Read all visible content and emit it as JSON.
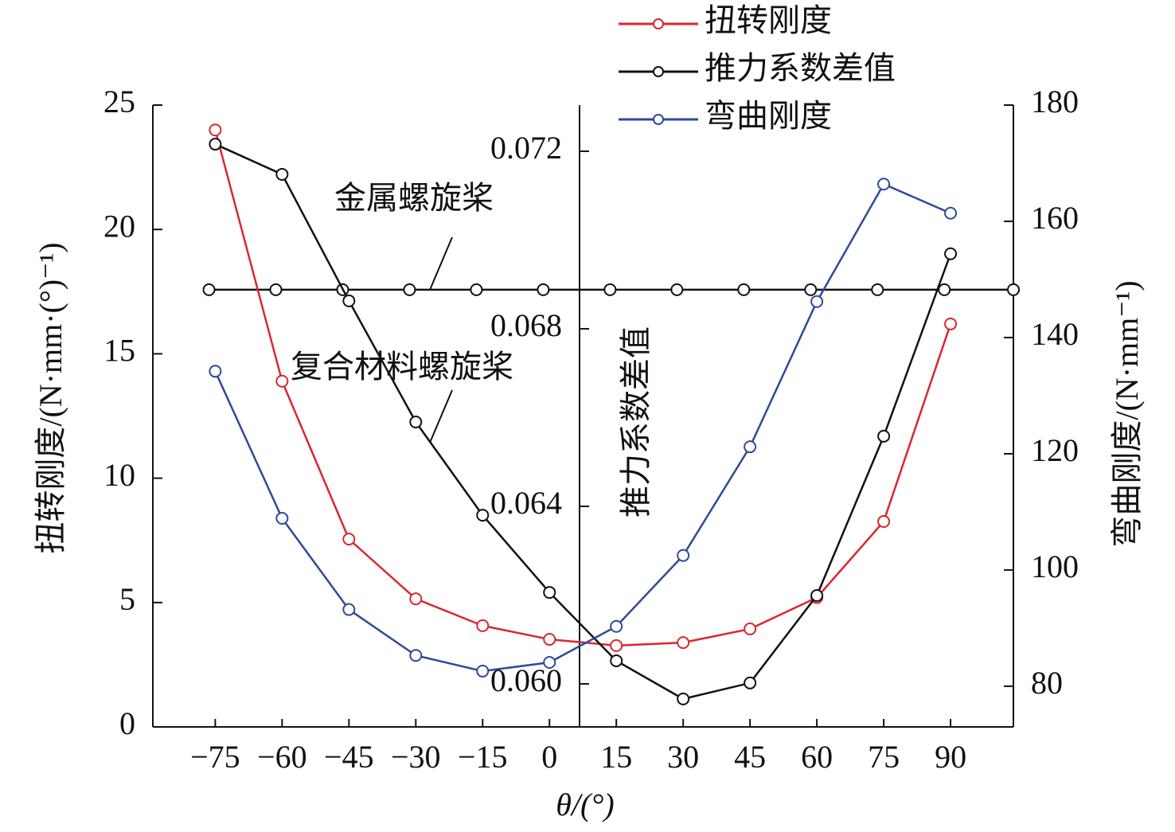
{
  "chart_data": {
    "type": "line",
    "xlabel": "θ/(°)",
    "ylabel": "扭转刚度/(N·mm·(°)⁻¹)",
    "y2label": "弯曲刚度/(N·mm⁻¹)",
    "y3label": "推力系数差值",
    "x": [
      -75,
      -60,
      -45,
      -30,
      -15,
      0,
      15,
      30,
      45,
      60,
      75,
      90
    ],
    "xlim": [
      -89,
      104.1
    ],
    "xticks": [
      {
        "value": -75,
        "label": "−75"
      },
      {
        "value": -60,
        "label": "−60"
      },
      {
        "value": -45,
        "label": "−45"
      },
      {
        "value": -30,
        "label": "−30"
      },
      {
        "value": -15,
        "label": "−15"
      },
      0,
      15,
      30,
      45,
      60,
      75,
      90
    ],
    "ylim": [
      0,
      25
    ],
    "yticks": [
      0,
      5,
      10,
      15,
      20,
      25
    ],
    "y2lim": [
      73,
      180
    ],
    "y2ticks": [
      80,
      100,
      120,
      140,
      160,
      180
    ],
    "y3lim": [
      0.05903,
      0.07304
    ],
    "y3ticks": [
      {
        "value": 0.06,
        "label": "0.060"
      },
      0.064,
      0.068,
      0.072
    ],
    "series": [
      {
        "name": "扭转刚度",
        "color": "#d9272e",
        "axis": "y",
        "values": [
          24.0,
          13.9,
          7.55,
          5.15,
          4.07,
          3.52,
          3.27,
          3.39,
          3.94,
          5.2,
          8.26,
          16.2
        ]
      },
      {
        "name": "推力系数差值",
        "color": "#111111",
        "axis": "y3",
        "values": [
          0.07216,
          0.07148,
          0.06863,
          0.0659,
          0.0638,
          0.06206,
          0.06052,
          0.05966,
          0.06002,
          0.06199,
          0.06558,
          0.06969
        ]
      },
      {
        "name": "弯曲刚度",
        "color": "#2e4a9a",
        "axis": "y2",
        "values": [
          134.2,
          108.9,
          93.2,
          85.3,
          82.6,
          84.1,
          90.3,
          102.5,
          121.2,
          146.2,
          166.4,
          161.4
        ]
      }
    ],
    "annotations": [
      {
        "text": "金属螺旋桨",
        "axis": "y3",
        "x": [
          -76.4,
          -61.4,
          -46.4,
          -31.4,
          -16.4,
          -1.4,
          13.6,
          28.6,
          43.6,
          58.6,
          73.6,
          88.6,
          104.1
        ],
        "values": [
          0.06888,
          0.06888,
          0.06888,
          0.06888,
          0.06888,
          0.06888,
          0.06888,
          0.06888,
          0.06888,
          0.06888,
          0.06888,
          0.06888,
          0.06888
        ]
      },
      {
        "text": "复合材料螺旋桨"
      }
    ]
  }
}
